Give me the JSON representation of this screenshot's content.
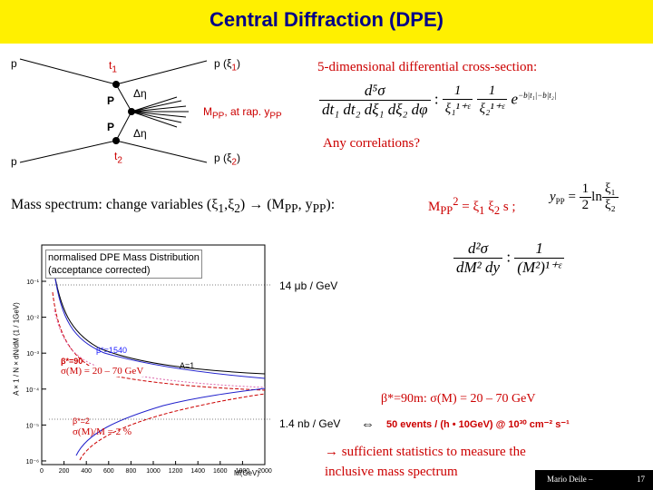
{
  "title": "Central Diffraction (DPE)",
  "diagram": {
    "p_left_top": "p",
    "p_left_bottom": "p",
    "t1": "t",
    "t1_sub": "1",
    "t2": "t",
    "t2_sub": "2",
    "P_top": "P",
    "P_bottom": "P",
    "delta_eta_top": "Δη",
    "delta_eta_bottom": "Δη",
    "p_xi1": "p (ξ",
    "p_xi1_sub": "1",
    "p_xi2": "p (ξ",
    "p_xi2_sub": "2",
    "close_paren": ")",
    "mpp": "M",
    "mpp_sub": "PP",
    "at_rap": ", at rap. y",
    "at_rap_sub": "PP"
  },
  "cross_section": {
    "heading": "5-dimensional differential cross-section:",
    "num": "d⁵σ",
    "den": "dt₁ dt₂ dξ₁ dξ₂ dφ",
    "colon": ":",
    "one_a": "1",
    "xi1_den": "ξ₁¹⁺ᵋ",
    "one_b": "1",
    "xi2_den": "ξ₂¹⁺ᵋ",
    "exp": "e",
    "exp_sup": "−b|t₁|−b|t₂|",
    "question": "Any correlations?"
  },
  "mass_spectrum": {
    "text": "Mass spectrum: change variables (ξ",
    "sub1": "1",
    "comma": ",ξ",
    "sub2": "2",
    "arrow_part": ") → (M",
    "pp1": "PP",
    "comma2": ", y",
    "pp2": "PP",
    "end": "):",
    "m_label": "M",
    "m_sub": "PP",
    "sq": "2",
    "eq_rest": " = ξ",
    "xi_1": "1",
    "xi_sp": " ξ",
    "xi_2": "2",
    "s_part": " s ;",
    "y_label": "y",
    "y_sub": "PP",
    "y_eq": " = ",
    "half_num": "1",
    "half_den": "2",
    "ln": "ln",
    "ln_num": "ξ₁",
    "ln_den": "ξ₂"
  },
  "dm_formula": {
    "num": "d²σ",
    "den": "dM² dy",
    "colon": ":",
    "one": "1",
    "den2": "(M²)¹⁺ᵋ"
  },
  "plot": {
    "title_line1": "normalised DPE Mass Distribution",
    "title_line2": "(acceptance corrected)",
    "ylabel": "A × 1 / N × dN/dM (1 / 1GeV)",
    "xlabel": "M(GeV)",
    "xticks": [
      "0",
      "200",
      "400",
      "600",
      "800",
      "1000",
      "1200",
      "1400",
      "1600",
      "1800",
      "2000"
    ],
    "yticks": [
      "10⁻¹",
      "10⁻²",
      "10⁻³",
      "10⁻⁴",
      "10⁻⁵",
      "10⁻⁶"
    ],
    "label_beta1540": "β*=1540",
    "label_beta90": "β*=90",
    "label_sigma90": "σ(M) = 20 – 70 GeV",
    "label_A1": "A=1",
    "label_beta2": "β*=2",
    "label_sigma2": "σ(M)/M = 2 %"
  },
  "annotations": {
    "rate1": "14 μb / GeV",
    "beta_line": "β*=90m: σ(M) = 20 – 70 GeV",
    "rate2": "1.4 nb / GeV",
    "equiv": "⇔",
    "events": "50 events / (h • 10GeV) @ 10³⁰ cm⁻² s⁻¹",
    "conclusion_line1": "→ sufficient statistics to measure the",
    "conclusion_line2": "inclusive mass spectrum"
  },
  "footer": {
    "author": "Mario Deile –",
    "page": "17"
  },
  "colors": {
    "title_bg": "#fff000",
    "title_text": "#000088",
    "accent_red": "#cc0000"
  }
}
